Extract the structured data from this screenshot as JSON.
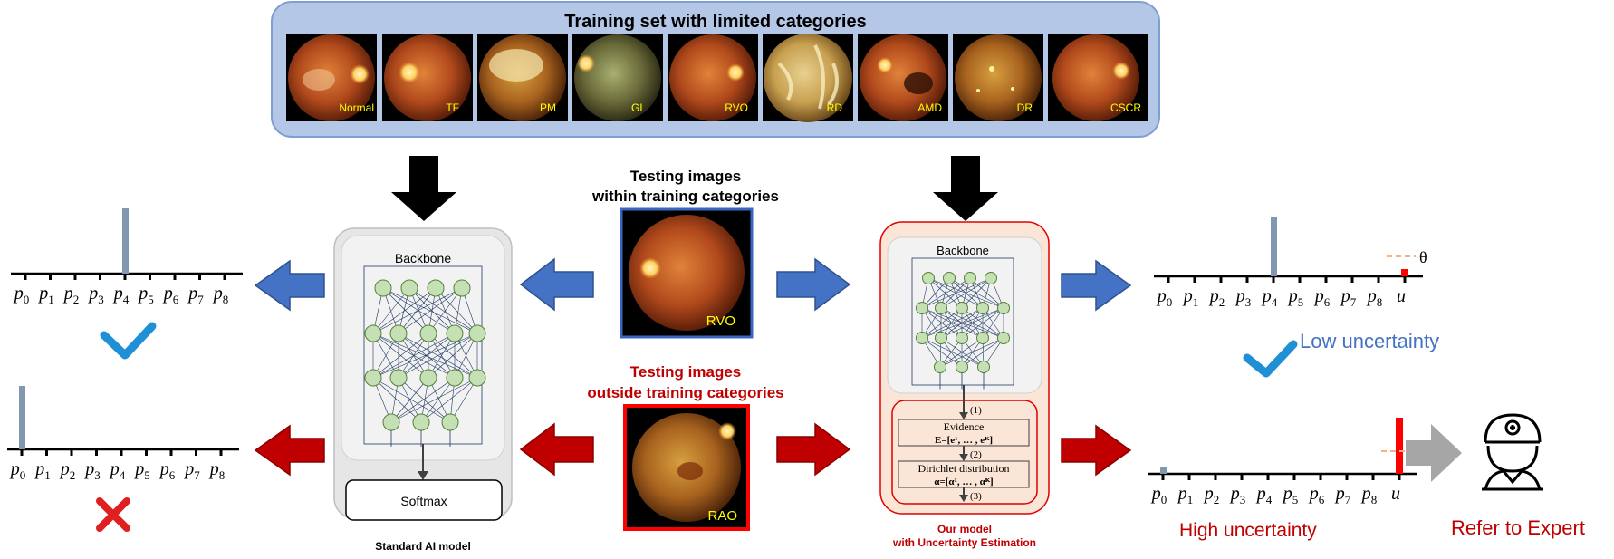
{
  "training": {
    "title": "Training set with limited categories",
    "categories": [
      "Normal",
      "TF",
      "PM",
      "GL",
      "RVO",
      "RD",
      "AMD",
      "DR",
      "CSCR"
    ]
  },
  "testing_within": {
    "line1": "Testing images",
    "line2": "within training categories",
    "image_label": "RVO"
  },
  "testing_outside": {
    "line1": "Testing images",
    "line2": "outside training categories",
    "image_label": "RAO"
  },
  "standard_model": {
    "backbone": "Backbone",
    "softmax": "Softmax",
    "caption": "Standard AI model"
  },
  "our_model": {
    "backbone": "Backbone",
    "step1": "(1)",
    "step2": "(2)",
    "step3": "(3)",
    "evidence_title": "Evidence",
    "evidence_formula": "E=[e¹, … , eᴷ]",
    "dirichlet_title": "Dirichlet distribution",
    "dirichlet_formula": "α=[α¹, … , αᴷ]",
    "caption_line1": "Our model",
    "caption_line2": "with Uncertainty Estimation"
  },
  "axis_labels": [
    "p0",
    "p1",
    "p2",
    "p3",
    "p4",
    "p5",
    "p6",
    "p7",
    "p8"
  ],
  "uncertainty_symbol": "u",
  "threshold_symbol": "θ",
  "low_uncertainty": "Low uncertainty",
  "high_uncertainty": "High uncertainty",
  "refer": "Refer to Expert",
  "colors": {
    "blue_arrow": "#4472c4",
    "red_arrow": "#c00000",
    "bar": "#8497b0",
    "check": "#1f8fd6",
    "cross": "#e02020",
    "red_bar": "#ff0000"
  }
}
